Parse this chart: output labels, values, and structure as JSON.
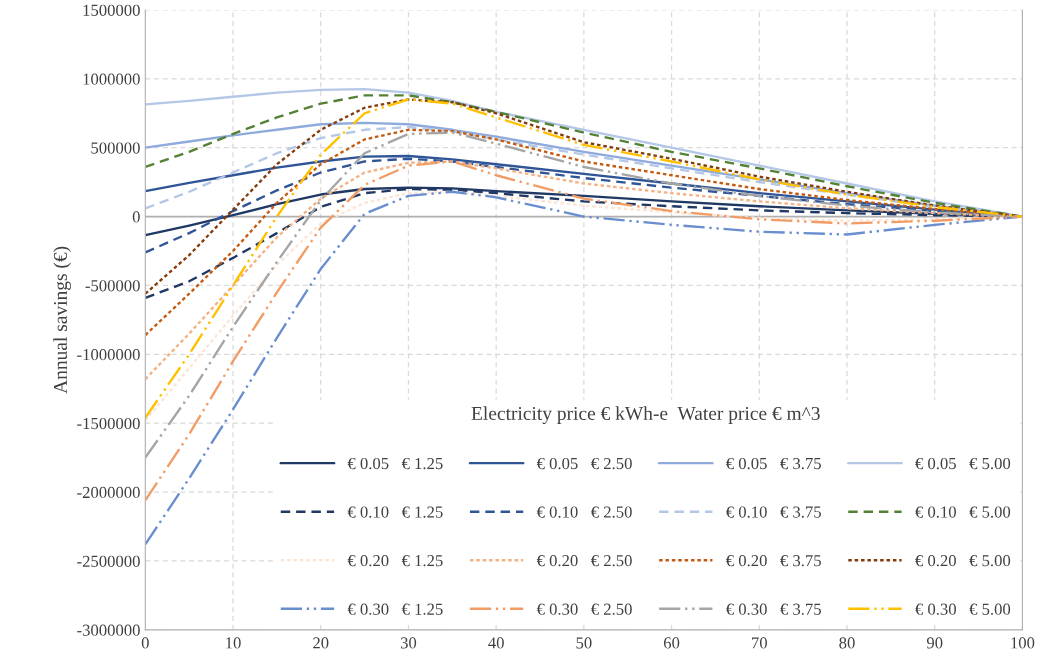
{
  "chart_data": {
    "type": "line",
    "ylabel": "Annual savings (€)",
    "legend_title": "Electricity price € kWh-e  Water price € m^3",
    "x": [
      0,
      5,
      10,
      15,
      20,
      25,
      30,
      35,
      40,
      50,
      60,
      70,
      80,
      90,
      100
    ],
    "xlim": [
      0,
      100
    ],
    "xticks": [
      0,
      10,
      20,
      30,
      40,
      50,
      60,
      70,
      80,
      90,
      100
    ],
    "ylim": [
      -3000000,
      1500000
    ],
    "yticks": [
      -3000000,
      -2500000,
      -2000000,
      -1500000,
      -1000000,
      -500000,
      0,
      500000,
      1000000,
      1500000
    ],
    "ref_lines": [
      {
        "axis": "y",
        "value": 0,
        "color": "#b0b0b0",
        "line_style": "solid"
      }
    ],
    "grid": true,
    "legend": "bottom right",
    "marker": "none",
    "series": [
      {
        "name": "€ 0.05   € 1.25",
        "color": "#203864",
        "line_style": "solid",
        "values": [
          -135000,
          -65000,
          10000,
          90000,
          160000,
          200000,
          210000,
          205000,
          185000,
          150000,
          110000,
          75000,
          45000,
          20000,
          0
        ]
      },
      {
        "name": "€ 0.05   € 2.50",
        "color": "#2f5597",
        "line_style": "solid",
        "values": [
          185000,
          245000,
          300000,
          355000,
          400000,
          435000,
          440000,
          415000,
          380000,
          310000,
          240000,
          170000,
          110000,
          50000,
          0
        ]
      },
      {
        "name": "€ 0.05   € 3.75",
        "color": "#8faadc",
        "line_style": "solid",
        "values": [
          500000,
          545000,
          590000,
          630000,
          670000,
          680000,
          670000,
          630000,
          580000,
          470000,
          370000,
          270000,
          170000,
          80000,
          0
        ]
      },
      {
        "name": "€ 0.05   € 5.00",
        "color": "#b4c7e7",
        "line_style": "solid",
        "values": [
          815000,
          840000,
          870000,
          900000,
          920000,
          925000,
          900000,
          840000,
          760000,
          630000,
          500000,
          370000,
          240000,
          110000,
          0
        ]
      },
      {
        "name": "€ 0.10   € 1.25",
        "color": "#203864",
        "line_style": "dashed",
        "values": [
          -590000,
          -470000,
          -300000,
          -120000,
          70000,
          170000,
          200000,
          195000,
          170000,
          110000,
          75000,
          45000,
          25000,
          10000,
          0
        ]
      },
      {
        "name": "€ 0.10   € 2.50",
        "color": "#2f5597",
        "line_style": "dashed",
        "values": [
          -260000,
          -120000,
          40000,
          190000,
          320000,
          400000,
          420000,
          400000,
          360000,
          280000,
          210000,
          150000,
          90000,
          40000,
          0
        ]
      },
      {
        "name": "€ 0.10   € 3.75",
        "color": "#b4c7e7",
        "line_style": "dashed",
        "values": [
          60000,
          180000,
          320000,
          460000,
          570000,
          630000,
          650000,
          620000,
          560000,
          450000,
          350000,
          250000,
          160000,
          70000,
          0
        ]
      },
      {
        "name": "€ 0.10   € 5.00",
        "color": "#548235",
        "line_style": "dashed",
        "values": [
          360000,
          470000,
          600000,
          720000,
          820000,
          880000,
          880000,
          830000,
          760000,
          610000,
          470000,
          350000,
          220000,
          100000,
          0
        ]
      },
      {
        "name": "€ 0.20   € 1.25",
        "color": "#fbe5d6",
        "line_style": "dotted",
        "values": [
          -1480000,
          -1100000,
          -720000,
          -350000,
          -50000,
          100000,
          170000,
          180000,
          150000,
          80000,
          30000,
          -10000,
          -30000,
          -20000,
          0
        ]
      },
      {
        "name": "€ 0.20   € 2.50",
        "color": "#f4b183",
        "line_style": "dotted",
        "values": [
          -1180000,
          -850000,
          -500000,
          -150000,
          130000,
          320000,
          390000,
          400000,
          350000,
          240000,
          170000,
          110000,
          60000,
          25000,
          0
        ]
      },
      {
        "name": "€ 0.20   € 3.75",
        "color": "#c55a11",
        "line_style": "dotted",
        "values": [
          -860000,
          -560000,
          -250000,
          100000,
          380000,
          560000,
          630000,
          620000,
          560000,
          400000,
          300000,
          200000,
          120000,
          55000,
          0
        ]
      },
      {
        "name": "€ 0.20   € 5.00",
        "color": "#843c0c",
        "line_style": "dotted",
        "values": [
          -560000,
          -280000,
          50000,
          380000,
          630000,
          790000,
          850000,
          830000,
          750000,
          540000,
          420000,
          290000,
          180000,
          80000,
          0
        ]
      },
      {
        "name": "€ 0.30   € 1.25",
        "color": "#698ed0",
        "line_style": "dashdot",
        "values": [
          -2380000,
          -1900000,
          -1400000,
          -880000,
          -380000,
          20000,
          150000,
          180000,
          140000,
          0,
          -60000,
          -110000,
          -130000,
          -60000,
          0
        ]
      },
      {
        "name": "€ 0.30   € 2.50",
        "color": "#f19c65",
        "line_style": "dashdot",
        "values": [
          -2060000,
          -1580000,
          -1050000,
          -550000,
          -80000,
          230000,
          370000,
          400000,
          300000,
          130000,
          40000,
          -20000,
          -50000,
          -30000,
          0
        ]
      },
      {
        "name": "€ 0.30   € 3.75",
        "color": "#a5a5a5",
        "line_style": "dashdot",
        "values": [
          -1750000,
          -1300000,
          -800000,
          -330000,
          120000,
          460000,
          600000,
          610000,
          530000,
          360000,
          240000,
          150000,
          80000,
          30000,
          0
        ]
      },
      {
        "name": "€ 0.30   € 5.00",
        "color": "#ffc000",
        "line_style": "dashdot",
        "values": [
          -1460000,
          -1000000,
          -500000,
          0,
          450000,
          750000,
          850000,
          820000,
          720000,
          520000,
          400000,
          270000,
          160000,
          70000,
          0
        ]
      }
    ]
  }
}
